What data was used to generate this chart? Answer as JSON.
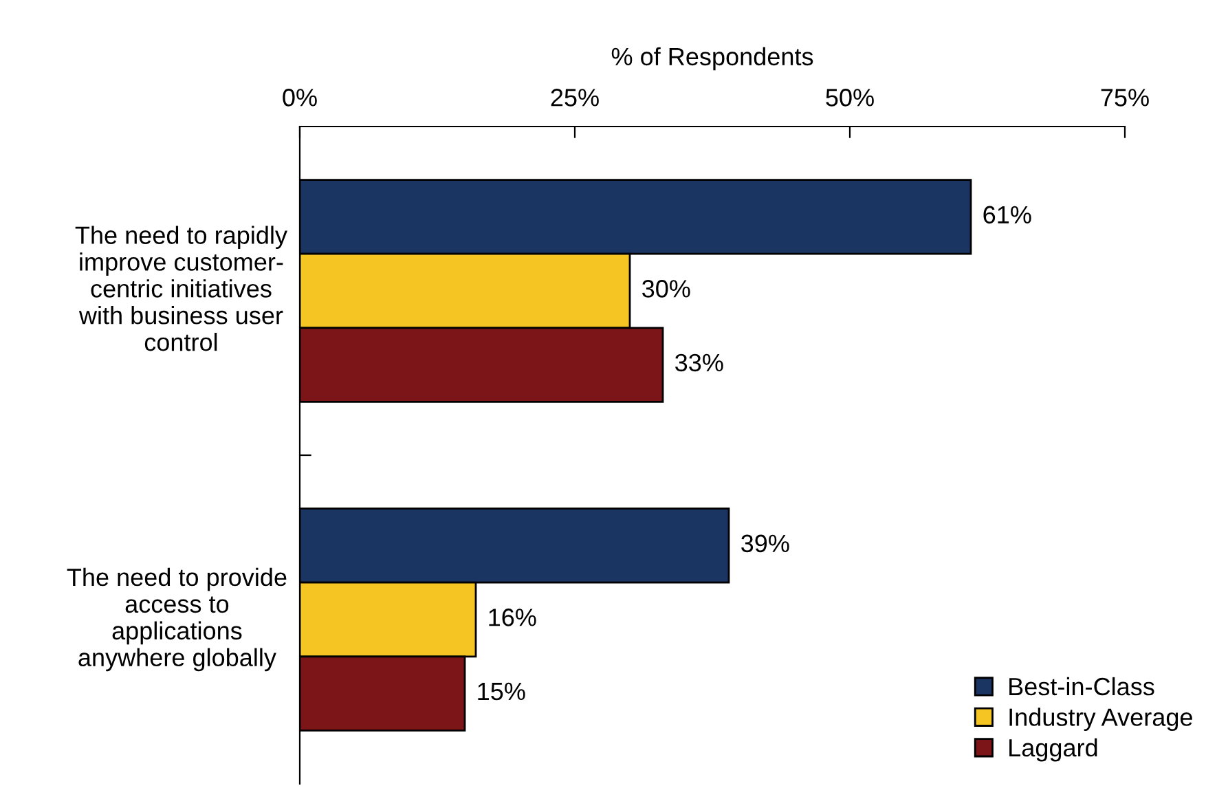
{
  "chart_data": {
    "type": "bar",
    "orientation": "horizontal",
    "xlabel": "% of Respondents",
    "categories": [
      "The need to rapidly\nimprove customer-\ncentric initiatives\nwith business user\ncontrol",
      "The need to provide\naccess to\napplications\nanywhere globally"
    ],
    "series": [
      {
        "name": "Best-in-Class",
        "color": "#1b3563",
        "values": [
          61,
          39
        ],
        "value_labels": [
          "61%",
          "39%"
        ]
      },
      {
        "name": "Industry Average",
        "color": "#f5c623",
        "values": [
          30,
          16
        ],
        "value_labels": [
          "30%",
          "16%"
        ]
      },
      {
        "name": "Laggard",
        "color": "#7b1518",
        "values": [
          33,
          15
        ],
        "value_labels": [
          "33%",
          "15%"
        ]
      }
    ],
    "xlim": [
      0,
      75
    ],
    "xticks": [
      {
        "value": 0,
        "label": "0%"
      },
      {
        "value": 25,
        "label": "25%"
      },
      {
        "value": 50,
        "label": "50%"
      },
      {
        "value": 75,
        "label": "75%"
      }
    ],
    "grid": false,
    "legend": "bottom right"
  }
}
